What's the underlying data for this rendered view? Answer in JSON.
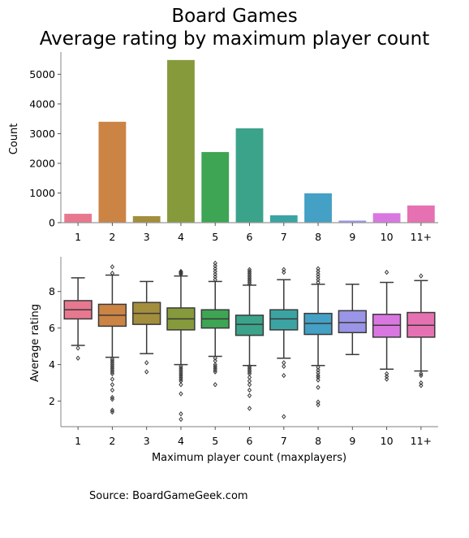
{
  "title_lines": [
    "Board Games",
    "Average rating by maximum player count"
  ],
  "source": "Source: BoardGameGeek.com",
  "categories": [
    "1",
    "2",
    "3",
    "4",
    "5",
    "6",
    "7",
    "8",
    "9",
    "10",
    "11+"
  ],
  "colors": [
    "#e8788f",
    "#cc8444",
    "#a38e3d",
    "#869a3c",
    "#3da553",
    "#3ba38a",
    "#3ba4a2",
    "#44a0c4",
    "#9a95e6",
    "#d977e0",
    "#e671b2"
  ],
  "chart_data": [
    {
      "type": "bar",
      "categories": [
        "1",
        "2",
        "3",
        "4",
        "5",
        "6",
        "7",
        "8",
        "9",
        "10",
        "11+"
      ],
      "values": [
        300,
        3400,
        220,
        5480,
        2380,
        3180,
        250,
        990,
        70,
        320,
        580
      ],
      "ylabel": "Count",
      "yticks": [
        0,
        1000,
        2000,
        3000,
        4000,
        5000
      ],
      "ylim": [
        0,
        5750
      ]
    },
    {
      "type": "box",
      "categories": [
        "1",
        "2",
        "3",
        "4",
        "5",
        "6",
        "7",
        "8",
        "9",
        "10",
        "11+"
      ],
      "xlabel": "Maximum player count (maxplayers)",
      "ylabel": "Average rating",
      "yticks": [
        2,
        4,
        6,
        8
      ],
      "ylim": [
        0.6,
        9.9
      ],
      "series": [
        {
          "q1": 6.5,
          "median": 7.0,
          "q3": 7.5,
          "whisker_low": 5.05,
          "whisker_high": 8.75,
          "outliers": [
            4.9,
            4.35
          ]
        },
        {
          "q1": 6.1,
          "median": 6.7,
          "q3": 7.3,
          "whisker_low": 4.4,
          "whisker_high": 8.9,
          "outliers": [
            9.35,
            9.0,
            4.3,
            4.2,
            4.1,
            4.0,
            3.9,
            3.8,
            3.7,
            3.6,
            3.5,
            3.2,
            2.9,
            2.6,
            2.2,
            2.1,
            1.5,
            1.4
          ]
        },
        {
          "q1": 6.2,
          "median": 6.8,
          "q3": 7.4,
          "whisker_low": 4.6,
          "whisker_high": 8.55,
          "outliers": [
            4.1,
            3.6
          ]
        },
        {
          "q1": 5.9,
          "median": 6.5,
          "q3": 7.1,
          "whisker_low": 4.0,
          "whisker_high": 8.85,
          "outliers": [
            9.1,
            9.05,
            9.0,
            8.95,
            3.9,
            3.8,
            3.7,
            3.6,
            3.5,
            3.4,
            3.3,
            3.2,
            3.1,
            2.9,
            2.4,
            1.3,
            1.0
          ]
        },
        {
          "q1": 6.0,
          "median": 6.5,
          "q3": 7.0,
          "whisker_low": 4.45,
          "whisker_high": 8.55,
          "outliers": [
            9.55,
            9.4,
            9.25,
            9.1,
            8.95,
            8.8,
            8.65,
            4.35,
            4.2,
            4.0,
            3.9,
            3.8,
            3.7,
            3.6,
            2.9
          ]
        },
        {
          "q1": 5.6,
          "median": 6.2,
          "q3": 6.7,
          "whisker_low": 3.95,
          "whisker_high": 8.35,
          "outliers": [
            9.2,
            9.1,
            9.0,
            8.9,
            8.8,
            8.7,
            8.6,
            8.5,
            8.4,
            3.9,
            3.8,
            3.7,
            3.6,
            3.5,
            3.3,
            3.1,
            2.9,
            2.6,
            2.3,
            1.6
          ]
        },
        {
          "q1": 5.9,
          "median": 6.5,
          "q3": 7.0,
          "whisker_low": 4.35,
          "whisker_high": 8.65,
          "outliers": [
            9.2,
            9.05,
            4.1,
            3.9,
            3.4,
            1.15
          ]
        },
        {
          "q1": 5.65,
          "median": 6.25,
          "q3": 6.8,
          "whisker_low": 3.95,
          "whisker_high": 8.4,
          "outliers": [
            9.25,
            9.1,
            8.95,
            8.8,
            8.65,
            8.5,
            3.85,
            3.7,
            3.55,
            3.4,
            3.3,
            3.15,
            2.75,
            1.95,
            1.8
          ]
        },
        {
          "q1": 5.75,
          "median": 6.3,
          "q3": 6.95,
          "whisker_low": 4.55,
          "whisker_high": 8.4,
          "outliers": []
        },
        {
          "q1": 5.5,
          "median": 6.15,
          "q3": 6.75,
          "whisker_low": 3.75,
          "whisker_high": 8.5,
          "outliers": [
            9.05,
            3.5,
            3.35,
            3.2
          ]
        },
        {
          "q1": 5.5,
          "median": 6.15,
          "q3": 6.85,
          "whisker_low": 3.65,
          "whisker_high": 8.6,
          "outliers": [
            8.85,
            3.5,
            3.4,
            3.0,
            2.85
          ]
        }
      ]
    }
  ]
}
